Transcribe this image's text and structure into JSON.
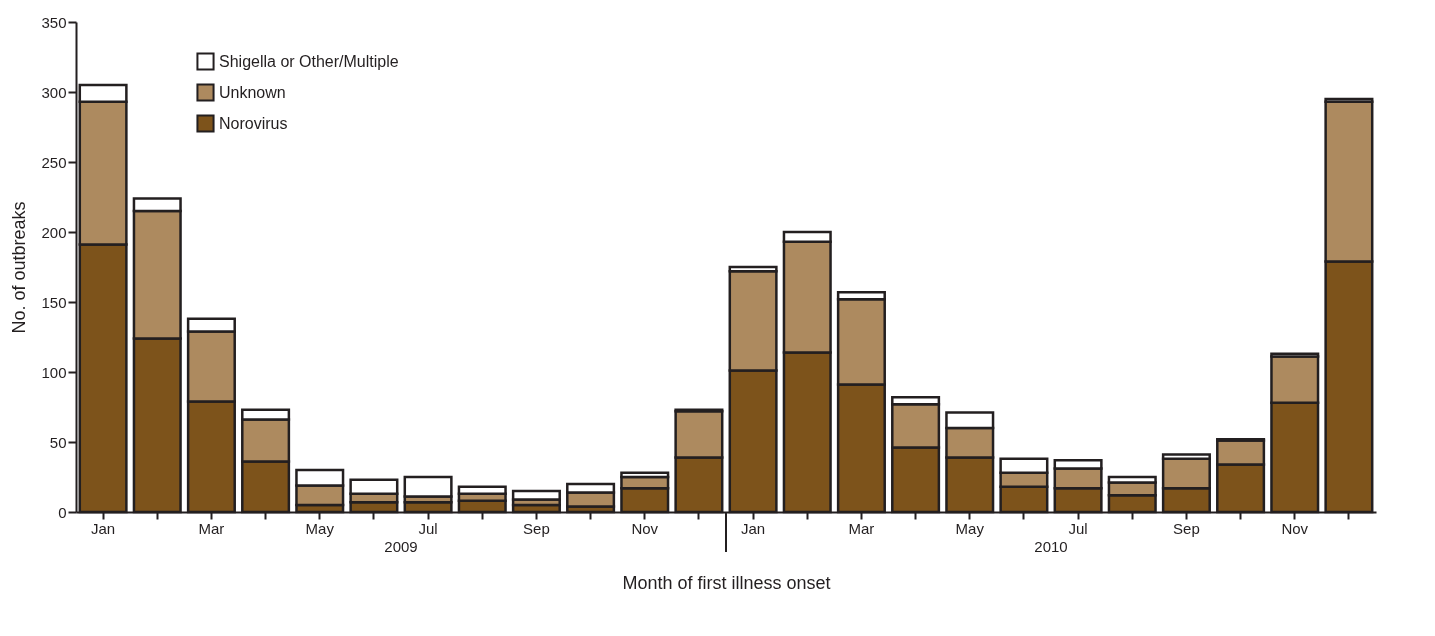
{
  "chart_data": {
    "type": "bar",
    "stacked": true,
    "xlabel": "Month of first illness onset",
    "ylabel": "No. of outbreaks",
    "categories": [
      "Jan",
      null,
      "Mar",
      null,
      "May",
      null,
      "Jul",
      null,
      "Sep",
      null,
      "Nov",
      null,
      "Jan",
      null,
      "Mar",
      null,
      "May",
      null,
      "Jul",
      null,
      "Sep",
      null,
      "Nov",
      null
    ],
    "series": [
      {
        "name": "Norovirus",
        "color": "#7d531b",
        "values": [
          191,
          124,
          79,
          36,
          5,
          7,
          7,
          8,
          5,
          4,
          17,
          39,
          101,
          114,
          91,
          46,
          39,
          18,
          17,
          12,
          17,
          34,
          78,
          179
        ]
      },
      {
        "name": "Unknown",
        "color": "#ad8a5f",
        "values": [
          102,
          91,
          50,
          30,
          14,
          6,
          4,
          5,
          4,
          10,
          8,
          33,
          71,
          79,
          61,
          31,
          21,
          10,
          14,
          9,
          21,
          17,
          33,
          114
        ]
      },
      {
        "name": "Shigella or Other/Multiple",
        "color": "#ffffff",
        "values": [
          12,
          9,
          9,
          7,
          11,
          10,
          14,
          5,
          6,
          6,
          3,
          1,
          3,
          7,
          5,
          5,
          11,
          10,
          6,
          4,
          3,
          1,
          2,
          2
        ]
      }
    ],
    "ylim": [
      0,
      350
    ],
    "yticks": [
      0,
      50,
      100,
      150,
      200,
      250,
      300,
      350
    ],
    "legend": "top left",
    "annotations": [
      "2009",
      "2010"
    ]
  }
}
